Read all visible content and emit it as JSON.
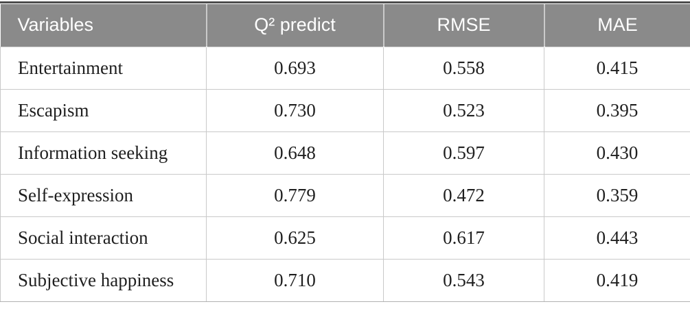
{
  "table": {
    "columns": [
      {
        "label": "Variables"
      },
      {
        "label": "Q² predict"
      },
      {
        "label": "RMSE"
      },
      {
        "label": "MAE"
      }
    ],
    "rows": [
      {
        "variable": "Entertainment",
        "values": [
          "0.693",
          "0.558",
          "0.415"
        ]
      },
      {
        "variable": "Escapism",
        "values": [
          "0.730",
          "0.523",
          "0.395"
        ]
      },
      {
        "variable": "Information seeking",
        "values": [
          "0.648",
          "0.597",
          "0.430"
        ]
      },
      {
        "variable": "Self-expression",
        "values": [
          "0.779",
          "0.472",
          "0.359"
        ]
      },
      {
        "variable": "Social interaction",
        "values": [
          "0.625",
          "0.617",
          "0.443"
        ]
      },
      {
        "variable": "Subjective happiness",
        "values": [
          "0.710",
          "0.543",
          "0.419"
        ]
      }
    ]
  },
  "colors": {
    "header_background": "#8a8a8a",
    "header_text": "#ffffff",
    "top_rule": "#4d4d4d",
    "body_text": "#1f1f1f",
    "grid_line": "#c9c9c9"
  }
}
